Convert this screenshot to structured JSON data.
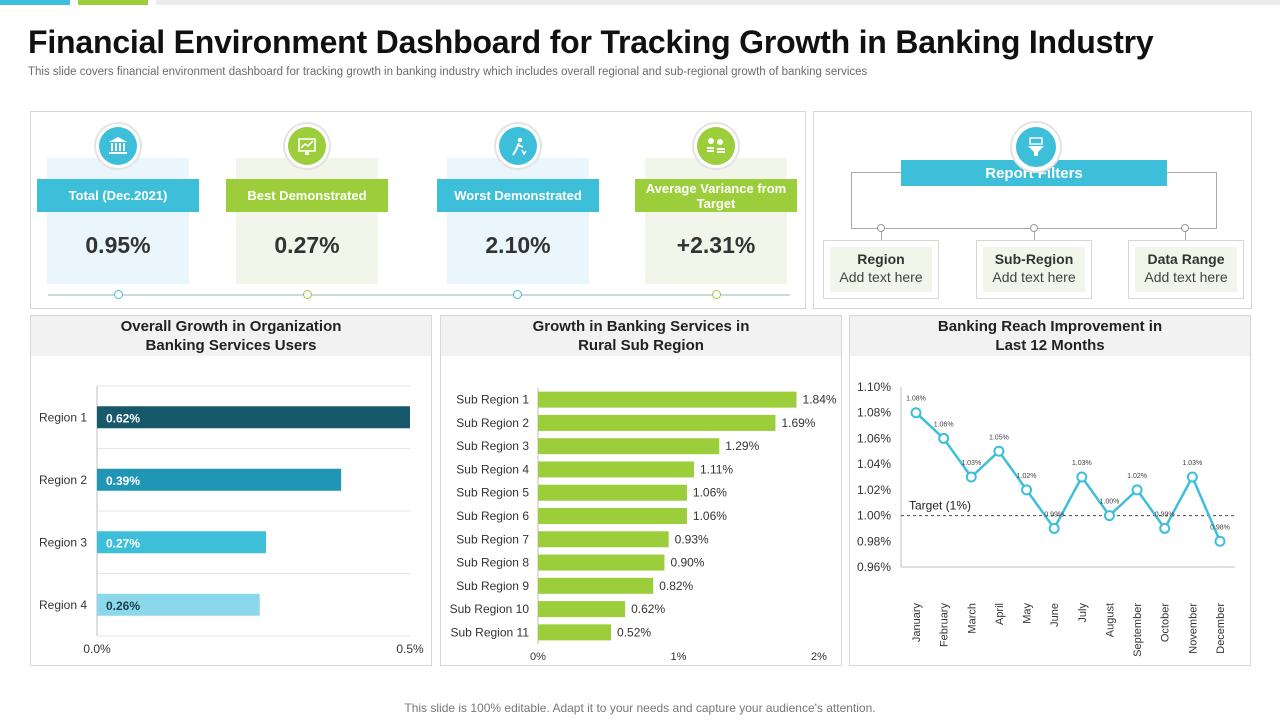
{
  "header": {
    "title": "Financial Environment Dashboard for Tracking Growth in Banking Industry",
    "subtitle": "This slide covers financial environment dashboard for tracking growth in banking industry which includes overall regional and sub-regional growth of banking services"
  },
  "colors": {
    "cyan": "#3ebfd9",
    "green": "#9ccd3b",
    "light_cyan_bg": "#eaf6fb",
    "light_green_bg": "#f1f5ea",
    "bar_green": "#9ccd3b",
    "line": "#3ebfd9"
  },
  "kpis": [
    {
      "label": "Total (Dec.2021)",
      "value": "0.95%",
      "icon": "bank-icon",
      "color": "#3ebfd9"
    },
    {
      "label": "Best Demonstrated",
      "value": "0.27%",
      "icon": "growth-chart-icon",
      "color": "#9ccd3b"
    },
    {
      "label": "Worst Demonstrated",
      "value": "2.10%",
      "icon": "falling-person-icon",
      "color": "#3ebfd9"
    },
    {
      "label": "Average Variance from Target",
      "value": "+2.31%",
      "icon": "coins-icon",
      "color": "#9ccd3b"
    }
  ],
  "filters": {
    "title": "Report Filters",
    "icon": "funnel-icon",
    "items": [
      {
        "name": "Region",
        "text": "Add text here"
      },
      {
        "name": "Sub-Region",
        "text": "Add text here"
      },
      {
        "name": "Data Range",
        "text": "Add text here"
      }
    ]
  },
  "charts": {
    "users_title": "Overall Growth in Organization Banking Services Users",
    "rural_title": "Growth in Banking Services in Rural Sub Region",
    "reach_title": "Banking Reach Improvement in Last 12 Months"
  },
  "chart_data": [
    {
      "type": "bar",
      "orientation": "horizontal",
      "title": "Overall Growth in Organization Banking Services Users",
      "categories": [
        "Region 1",
        "Region 2",
        "Region 3",
        "Region 4"
      ],
      "values": [
        0.62,
        0.39,
        0.27,
        0.26
      ],
      "value_labels": [
        "0.62%",
        "0.39%",
        "0.27%",
        "0.26%"
      ],
      "bar_colors": [
        "#17586b",
        "#2196b4",
        "#3ebfd9",
        "#8bd8ea"
      ],
      "xlim": [
        0,
        0.5
      ],
      "xticks": [
        "0.0%",
        "0.5%"
      ],
      "grid": true
    },
    {
      "type": "bar",
      "orientation": "horizontal",
      "title": "Growth in Banking Services in Rural Sub Region",
      "categories": [
        "Sub Region 1",
        "Sub Region 2",
        "Sub Region 3",
        "Sub Region 4",
        "Sub Region 5",
        "Sub Region 6",
        "Sub Region 7",
        "Sub Region 8",
        "Sub Region 9",
        "Sub Region 10",
        "Sub Region 11"
      ],
      "values": [
        1.84,
        1.69,
        1.29,
        1.11,
        1.06,
        1.06,
        0.93,
        0.9,
        0.82,
        0.62,
        0.52
      ],
      "value_labels": [
        "1.84%",
        "1.69%",
        "1.29%",
        "1.11%",
        "1.06%",
        "1.06%",
        "0.93%",
        "0.90%",
        "0.82%",
        "0.62%",
        "0.52%"
      ],
      "xlim": [
        0,
        2
      ],
      "xticks": [
        "0%",
        "1%",
        "2%"
      ],
      "grid": false
    },
    {
      "type": "line",
      "title": "Banking Reach Improvement in Last 12 Months",
      "categories": [
        "January",
        "February",
        "March",
        "April",
        "May",
        "June",
        "July",
        "August",
        "September",
        "October",
        "November",
        "December"
      ],
      "values": [
        1.08,
        1.06,
        1.03,
        1.05,
        1.02,
        0.99,
        1.03,
        1.0,
        1.02,
        0.99,
        1.03,
        0.98
      ],
      "value_labels": [
        "1.08%",
        "1.06%",
        "1.03%",
        "1.05%",
        "1.02%",
        "0.99%",
        "1.03%",
        "1.00%",
        "1.02%",
        "0.99%",
        "1.03%",
        "0.98%"
      ],
      "ylim": [
        0.96,
        1.1
      ],
      "yticks": [
        "0.96%",
        "0.98%",
        "1.00%",
        "1.02%",
        "1.04%",
        "1.06%",
        "1.08%",
        "1.10%"
      ],
      "target": {
        "value": 1.0,
        "label": "Target  (1%)"
      },
      "grid": false
    }
  ],
  "footer": "This slide is 100% editable. Adapt it to your needs and capture your audience's attention."
}
